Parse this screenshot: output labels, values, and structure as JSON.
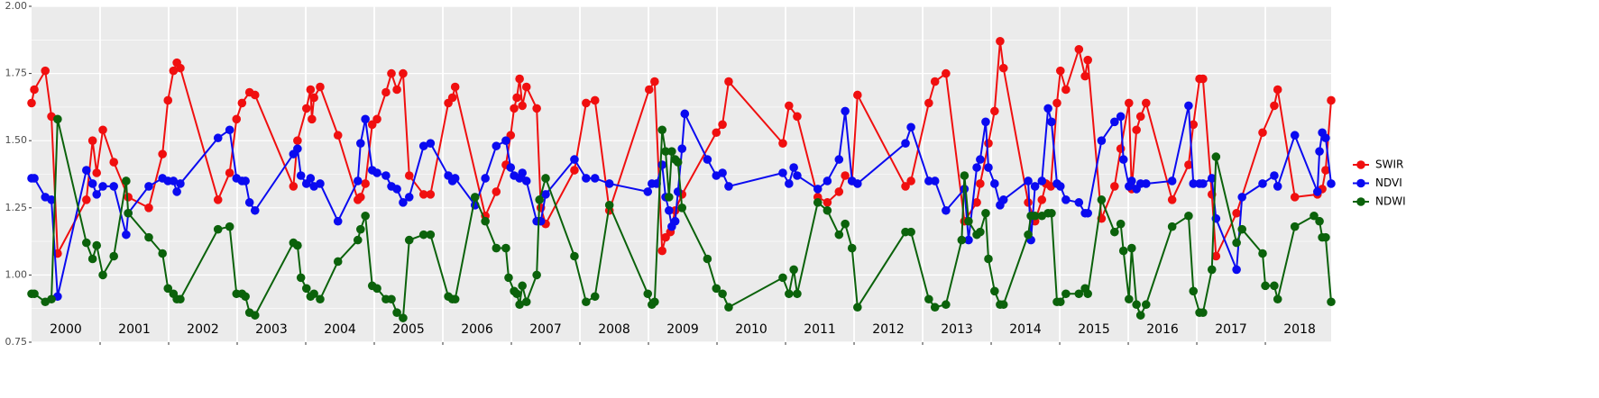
{
  "chart_data": {
    "type": "line",
    "xlim": [
      2000,
      2018.96
    ],
    "xticks": [
      2001,
      2002,
      2003,
      2004,
      2005,
      2006,
      2007,
      2008,
      2009,
      2010,
      2011,
      2012,
      2013,
      2014,
      2015,
      2016,
      2017,
      2018
    ],
    "year_labels": [
      2000,
      2001,
      2002,
      2003,
      2004,
      2005,
      2006,
      2007,
      2008,
      2009,
      2010,
      2011,
      2012,
      2013,
      2014,
      2015,
      2016,
      2017,
      2018
    ],
    "ylim": [
      0.75,
      2.0
    ],
    "yticks": [
      0.75,
      {
        "value": 1.0,
        "label": "1.00"
      },
      1.25,
      {
        "value": 1.5,
        "label": "1.50"
      },
      1.75,
      {
        "value": 2.0,
        "label": "2.00"
      }
    ],
    "minor_yticks": [
      0.875,
      1.125,
      1.375,
      1.625,
      1.875
    ],
    "grid": true,
    "legend": "right",
    "series": [
      {
        "name": "SWIR",
        "color": "#f00f0f",
        "x": [
          2000.0,
          2000.04,
          2000.2,
          2000.29,
          2000.38,
          2000.8,
          2000.89,
          2000.95,
          2001.04,
          2001.2,
          2001.41,
          2001.71,
          2001.91,
          2001.99,
          2002.07,
          2002.12,
          2002.17,
          2002.72,
          2002.89,
          2002.99,
          2003.07,
          2003.18,
          2003.26,
          2003.82,
          2003.88,
          2004.01,
          2004.07,
          2004.09,
          2004.12,
          2004.21,
          2004.47,
          2004.76,
          2004.8,
          2004.87,
          2004.97,
          2005.04,
          2005.17,
          2005.25,
          2005.33,
          2005.42,
          2005.51,
          2005.72,
          2005.82,
          2006.08,
          2006.14,
          2006.18,
          2006.62,
          2006.78,
          2006.92,
          2006.99,
          2007.04,
          2007.08,
          2007.12,
          2007.16,
          2007.22,
          2007.37,
          2007.43,
          2007.5,
          2007.92,
          2008.09,
          2008.22,
          2008.43,
          2009.01,
          2009.09,
          2009.2,
          2009.25,
          2009.32,
          2009.39,
          2009.49,
          2009.99,
          2010.08,
          2010.17,
          2010.96,
          2011.05,
          2011.17,
          2011.47,
          2011.61,
          2011.78,
          2011.87,
          2011.97,
          2012.05,
          2012.75,
          2012.83,
          2013.09,
          2013.18,
          2013.34,
          2013.61,
          2013.79,
          2013.84,
          2013.96,
          2014.05,
          2014.13,
          2014.18,
          2014.54,
          2014.64,
          2014.74,
          2014.8,
          2014.87,
          2014.96,
          2015.01,
          2015.09,
          2015.28,
          2015.37,
          2015.41,
          2015.61,
          2015.8,
          2015.89,
          2016.01,
          2016.05,
          2016.12,
          2016.18,
          2016.26,
          2016.64,
          2016.88,
          2016.95,
          2017.04,
          2017.09,
          2017.22,
          2017.28,
          2017.58,
          2017.96,
          2018.13,
          2018.18,
          2018.43,
          2018.76,
          2018.83,
          2018.88,
          2018.96
        ],
        "values": [
          1.64,
          1.69,
          1.76,
          1.59,
          1.08,
          1.28,
          1.5,
          1.38,
          1.54,
          1.42,
          1.29,
          1.25,
          1.45,
          1.65,
          1.76,
          1.79,
          1.77,
          1.28,
          1.38,
          1.58,
          1.64,
          1.68,
          1.67,
          1.33,
          1.5,
          1.62,
          1.69,
          1.58,
          1.66,
          1.7,
          1.52,
          1.28,
          1.29,
          1.34,
          1.56,
          1.58,
          1.68,
          1.75,
          1.69,
          1.75,
          1.37,
          1.3,
          1.3,
          1.64,
          1.66,
          1.7,
          1.22,
          1.31,
          1.41,
          1.52,
          1.62,
          1.66,
          1.73,
          1.63,
          1.7,
          1.62,
          1.25,
          1.19,
          1.39,
          1.64,
          1.65,
          1.24,
          1.69,
          1.72,
          1.09,
          1.14,
          1.16,
          1.24,
          1.3,
          1.53,
          1.56,
          1.72,
          1.49,
          1.63,
          1.59,
          1.29,
          1.27,
          1.31,
          1.37,
          1.35,
          1.67,
          1.33,
          1.35,
          1.64,
          1.72,
          1.75,
          1.2,
          1.27,
          1.34,
          1.49,
          1.61,
          1.87,
          1.77,
          1.27,
          1.2,
          1.28,
          1.34,
          1.33,
          1.64,
          1.76,
          1.69,
          1.84,
          1.74,
          1.8,
          1.21,
          1.33,
          1.47,
          1.64,
          1.32,
          1.54,
          1.59,
          1.64,
          1.28,
          1.41,
          1.56,
          1.73,
          1.73,
          1.3,
          1.07,
          1.23,
          1.53,
          1.63,
          1.69,
          1.29,
          1.3,
          1.32,
          1.39,
          1.65
        ]
      },
      {
        "name": "NDVI",
        "color": "#0a0af0",
        "x": [
          2000.0,
          2000.04,
          2000.2,
          2000.29,
          2000.38,
          2000.8,
          2000.89,
          2000.95,
          2001.04,
          2001.2,
          2001.38,
          2001.41,
          2001.71,
          2001.91,
          2001.99,
          2002.07,
          2002.12,
          2002.17,
          2002.72,
          2002.89,
          2002.99,
          2003.07,
          2003.12,
          2003.18,
          2003.26,
          2003.82,
          2003.88,
          2003.93,
          2004.01,
          2004.07,
          2004.12,
          2004.21,
          2004.47,
          2004.76,
          2004.8,
          2004.87,
          2004.97,
          2005.04,
          2005.17,
          2005.25,
          2005.33,
          2005.42,
          2005.51,
          2005.72,
          2005.82,
          2006.08,
          2006.14,
          2006.18,
          2006.47,
          2006.62,
          2006.78,
          2006.92,
          2006.99,
          2007.04,
          2007.12,
          2007.16,
          2007.22,
          2007.37,
          2007.43,
          2007.5,
          2007.92,
          2008.09,
          2008.22,
          2008.43,
          2008.99,
          2009.05,
          2009.12,
          2009.2,
          2009.25,
          2009.3,
          2009.34,
          2009.39,
          2009.43,
          2009.49,
          2009.53,
          2009.86,
          2009.99,
          2010.08,
          2010.17,
          2010.96,
          2011.05,
          2011.12,
          2011.17,
          2011.47,
          2011.61,
          2011.78,
          2011.87,
          2011.97,
          2012.05,
          2012.75,
          2012.83,
          2013.09,
          2013.18,
          2013.34,
          2013.61,
          2013.67,
          2013.79,
          2013.84,
          2013.92,
          2013.96,
          2014.05,
          2014.13,
          2014.18,
          2014.54,
          2014.58,
          2014.64,
          2014.74,
          2014.83,
          2014.88,
          2014.96,
          2015.01,
          2015.09,
          2015.28,
          2015.37,
          2015.41,
          2015.61,
          2015.8,
          2015.89,
          2015.93,
          2016.01,
          2016.05,
          2016.12,
          2016.18,
          2016.26,
          2016.64,
          2016.88,
          2016.95,
          2017.04,
          2017.09,
          2017.22,
          2017.28,
          2017.58,
          2017.66,
          2017.96,
          2018.13,
          2018.18,
          2018.43,
          2018.76,
          2018.79,
          2018.83,
          2018.88,
          2018.96
        ],
        "values": [
          1.36,
          1.36,
          1.29,
          1.28,
          0.92,
          1.39,
          1.34,
          1.3,
          1.33,
          1.33,
          1.15,
          1.23,
          1.33,
          1.36,
          1.35,
          1.35,
          1.31,
          1.34,
          1.51,
          1.54,
          1.36,
          1.35,
          1.35,
          1.27,
          1.24,
          1.45,
          1.47,
          1.37,
          1.34,
          1.36,
          1.33,
          1.34,
          1.2,
          1.35,
          1.49,
          1.58,
          1.39,
          1.38,
          1.37,
          1.33,
          1.32,
          1.27,
          1.29,
          1.48,
          1.49,
          1.37,
          1.35,
          1.36,
          1.26,
          1.36,
          1.48,
          1.5,
          1.4,
          1.37,
          1.36,
          1.38,
          1.35,
          1.2,
          1.2,
          1.3,
          1.43,
          1.36,
          1.36,
          1.34,
          1.31,
          1.34,
          1.34,
          1.41,
          1.29,
          1.24,
          1.18,
          1.2,
          1.31,
          1.47,
          1.6,
          1.43,
          1.37,
          1.38,
          1.33,
          1.38,
          1.34,
          1.4,
          1.37,
          1.32,
          1.35,
          1.43,
          1.61,
          1.35,
          1.34,
          1.49,
          1.55,
          1.35,
          1.35,
          1.24,
          1.32,
          1.13,
          1.4,
          1.43,
          1.57,
          1.4,
          1.34,
          1.26,
          1.28,
          1.35,
          1.13,
          1.33,
          1.35,
          1.62,
          1.57,
          1.34,
          1.33,
          1.28,
          1.27,
          1.23,
          1.23,
          1.5,
          1.57,
          1.59,
          1.43,
          1.33,
          1.35,
          1.32,
          1.34,
          1.34,
          1.35,
          1.63,
          1.34,
          1.34,
          1.34,
          1.36,
          1.21,
          1.02,
          1.29,
          1.34,
          1.37,
          1.33,
          1.52,
          1.31,
          1.46,
          1.53,
          1.51,
          1.34
        ]
      },
      {
        "name": "NDWI",
        "color": "#0b620b",
        "x": [
          2000.0,
          2000.04,
          2000.2,
          2000.29,
          2000.38,
          2000.8,
          2000.89,
          2000.95,
          2001.04,
          2001.2,
          2001.38,
          2001.41,
          2001.71,
          2001.91,
          2001.99,
          2002.07,
          2002.12,
          2002.17,
          2002.72,
          2002.89,
          2002.99,
          2003.07,
          2003.12,
          2003.18,
          2003.26,
          2003.82,
          2003.88,
          2003.93,
          2004.01,
          2004.07,
          2004.12,
          2004.21,
          2004.47,
          2004.76,
          2004.8,
          2004.87,
          2004.97,
          2005.04,
          2005.17,
          2005.25,
          2005.33,
          2005.42,
          2005.51,
          2005.72,
          2005.82,
          2006.08,
          2006.14,
          2006.18,
          2006.47,
          2006.62,
          2006.78,
          2006.92,
          2006.96,
          2007.04,
          2007.08,
          2007.12,
          2007.16,
          2007.22,
          2007.37,
          2007.41,
          2007.5,
          2007.92,
          2008.09,
          2008.22,
          2008.43,
          2008.99,
          2009.05,
          2009.09,
          2009.2,
          2009.25,
          2009.3,
          2009.34,
          2009.39,
          2009.43,
          2009.49,
          2009.86,
          2009.99,
          2010.08,
          2010.17,
          2010.96,
          2011.05,
          2011.12,
          2011.17,
          2011.47,
          2011.61,
          2011.78,
          2011.87,
          2011.97,
          2012.05,
          2012.75,
          2012.83,
          2013.09,
          2013.18,
          2013.34,
          2013.57,
          2013.61,
          2013.67,
          2013.79,
          2013.84,
          2013.92,
          2013.96,
          2014.05,
          2014.13,
          2014.18,
          2014.54,
          2014.58,
          2014.64,
          2014.74,
          2014.83,
          2014.88,
          2014.96,
          2015.01,
          2015.09,
          2015.28,
          2015.37,
          2015.41,
          2015.61,
          2015.8,
          2015.89,
          2015.93,
          2016.01,
          2016.05,
          2016.12,
          2016.18,
          2016.26,
          2016.64,
          2016.88,
          2016.95,
          2017.04,
          2017.09,
          2017.22,
          2017.28,
          2017.58,
          2017.66,
          2017.96,
          2018.0,
          2018.13,
          2018.18,
          2018.43,
          2018.71,
          2018.79,
          2018.83,
          2018.88,
          2018.96
        ],
        "values": [
          0.93,
          0.93,
          0.9,
          0.91,
          1.58,
          1.12,
          1.06,
          1.11,
          1.0,
          1.07,
          1.35,
          1.23,
          1.14,
          1.08,
          0.95,
          0.93,
          0.91,
          0.91,
          1.17,
          1.18,
          0.93,
          0.93,
          0.92,
          0.86,
          0.85,
          1.12,
          1.11,
          0.99,
          0.95,
          0.92,
          0.93,
          0.91,
          1.05,
          1.13,
          1.17,
          1.22,
          0.96,
          0.95,
          0.91,
          0.91,
          0.86,
          0.84,
          1.13,
          1.15,
          1.15,
          0.92,
          0.91,
          0.91,
          1.29,
          1.2,
          1.1,
          1.1,
          0.99,
          0.94,
          0.93,
          0.89,
          0.96,
          0.9,
          1.0,
          1.28,
          1.36,
          1.07,
          0.9,
          0.92,
          1.26,
          0.93,
          0.89,
          0.9,
          1.54,
          1.46,
          1.29,
          1.46,
          1.43,
          1.42,
          1.25,
          1.06,
          0.95,
          0.93,
          0.88,
          0.99,
          0.93,
          1.02,
          0.93,
          1.27,
          1.24,
          1.15,
          1.19,
          1.1,
          0.88,
          1.16,
          1.16,
          0.91,
          0.88,
          0.89,
          1.13,
          1.37,
          1.2,
          1.15,
          1.16,
          1.23,
          1.06,
          0.94,
          0.89,
          0.89,
          1.15,
          1.22,
          1.22,
          1.22,
          1.23,
          1.23,
          0.9,
          0.9,
          0.93,
          0.93,
          0.95,
          0.93,
          1.28,
          1.16,
          1.19,
          1.09,
          0.91,
          1.1,
          0.89,
          0.85,
          0.89,
          1.18,
          1.22,
          0.94,
          0.86,
          0.86,
          1.02,
          1.44,
          1.12,
          1.17,
          1.08,
          0.96,
          0.96,
          0.91,
          1.18,
          1.22,
          1.2,
          1.14,
          1.14,
          0.9
        ]
      }
    ]
  }
}
